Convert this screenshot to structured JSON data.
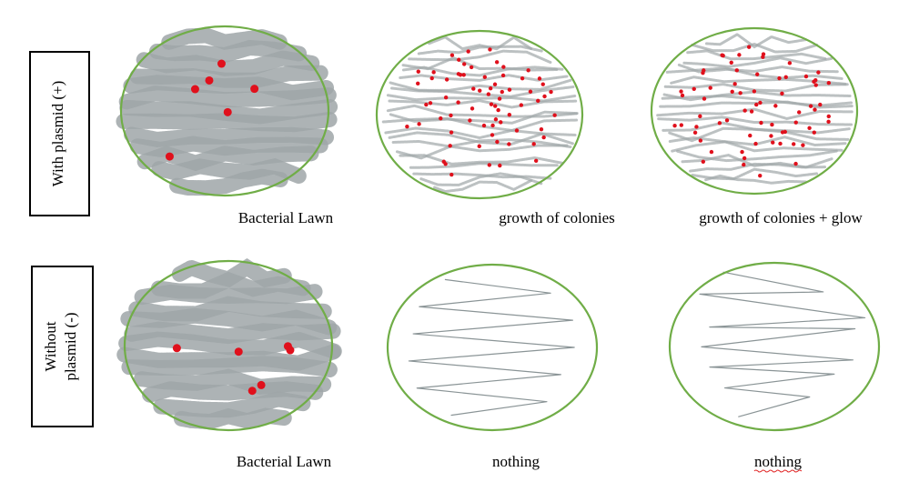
{
  "rows": [
    {
      "label": [
        "With plasmid (+)"
      ],
      "plates": [
        {
          "caption": "Bacterial Lawn"
        },
        {
          "caption": "growth of colonies"
        },
        {
          "caption": "growth of colonies + glow"
        }
      ]
    },
    {
      "label": [
        "Without",
        "plasmid (-)"
      ],
      "plates": [
        {
          "caption": "Bacterial Lawn"
        },
        {
          "caption": "nothing"
        },
        {
          "caption": "nothing"
        }
      ]
    }
  ]
}
